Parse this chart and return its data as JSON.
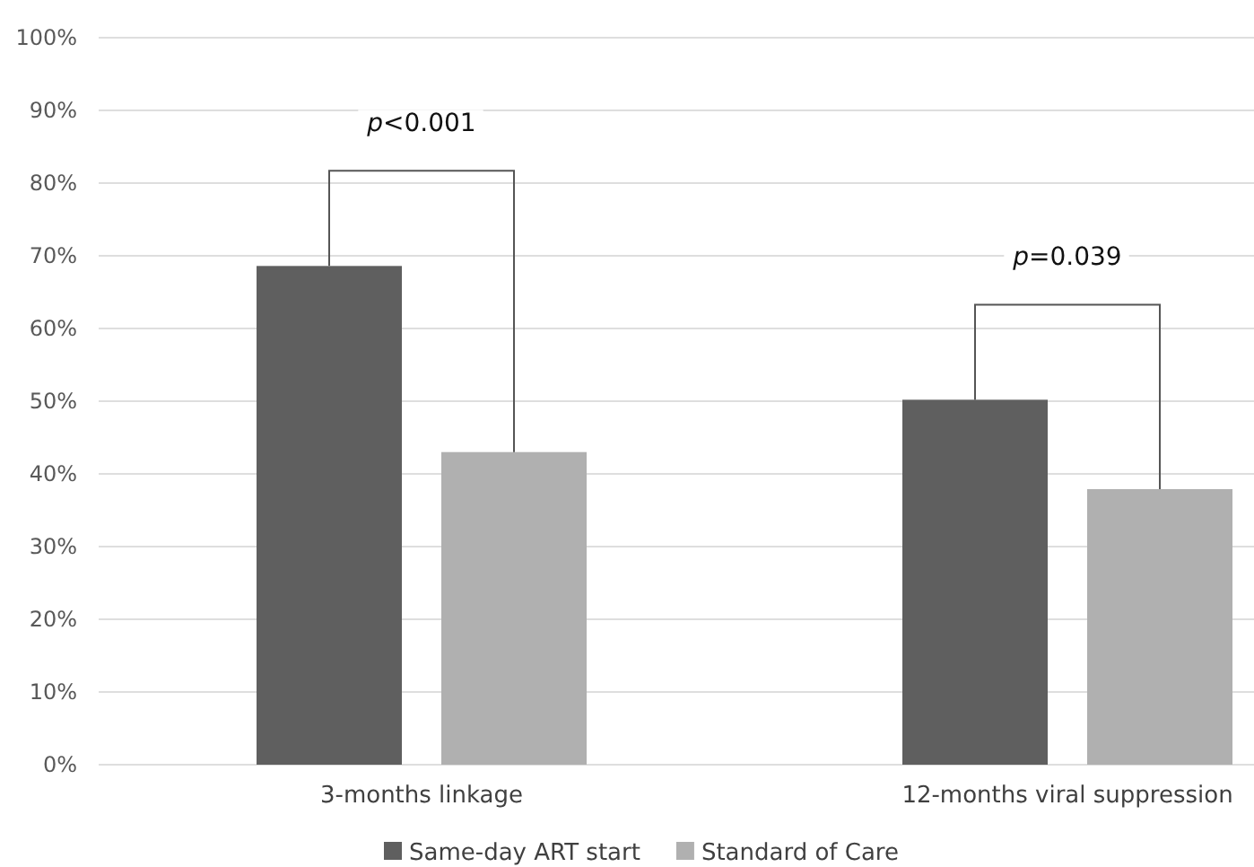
{
  "chart_data": {
    "type": "bar",
    "categories": [
      "3-months linkage",
      "12-months viral suppression"
    ],
    "series": [
      {
        "name": "Same-day ART start",
        "color": "#5f5f5f",
        "values": [
          68.6,
          50.2
        ]
      },
      {
        "name": "Standard of Care",
        "color": "#b0b0b0",
        "values": [
          43.0,
          37.9
        ]
      }
    ],
    "ylim": [
      0,
      100
    ],
    "yticks": [
      {
        "value": 0,
        "label": "0%"
      },
      {
        "value": 10,
        "label": "10%"
      },
      {
        "value": 20,
        "label": "20%"
      },
      {
        "value": 30,
        "label": "30%"
      },
      {
        "value": 40,
        "label": "40%"
      },
      {
        "value": 50,
        "label": "50%"
      },
      {
        "value": 60,
        "label": "60%"
      },
      {
        "value": 70,
        "label": "70%"
      },
      {
        "value": 80,
        "label": "80%"
      },
      {
        "value": 90,
        "label": "90%"
      },
      {
        "value": 100,
        "label": "100%"
      }
    ],
    "grid": "y",
    "legend": "bottom",
    "annotations": [
      "p<0.001",
      "p=0.039"
    ]
  }
}
